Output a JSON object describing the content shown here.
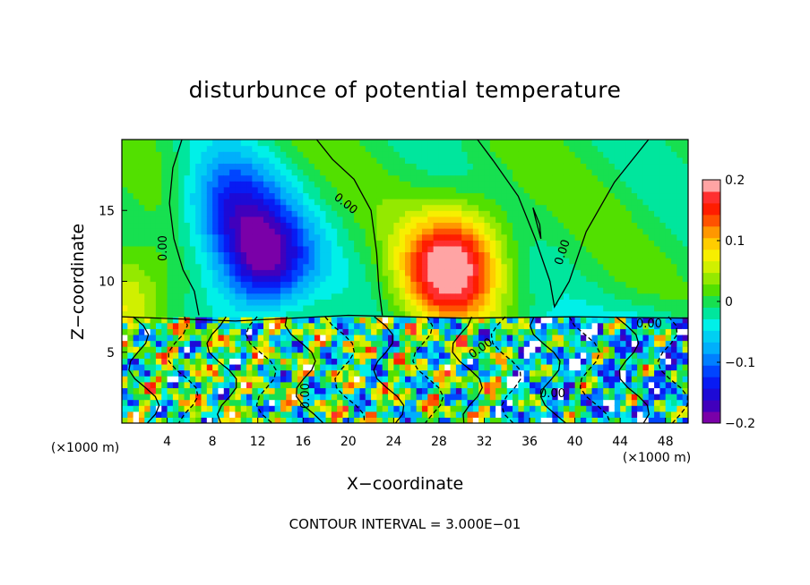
{
  "chart_data": {
    "type": "heatmap",
    "title": "disturbunce of potential temperature",
    "xlabel": "X−coordinate",
    "ylabel": "Z−coordinate",
    "x_unit_left": "(×1000 m)",
    "x_unit_right": "(×1000 m)",
    "xlim": [
      0,
      50
    ],
    "ylim": [
      0,
      20
    ],
    "x_ticks": [
      4,
      8,
      12,
      16,
      20,
      24,
      28,
      32,
      36,
      40,
      44,
      48
    ],
    "y_ticks": [
      5,
      10,
      15
    ],
    "colorbar": {
      "range": [
        -0.2,
        0.2
      ],
      "ticks": [
        {
          "value": 0.2,
          "label": "0.2"
        },
        {
          "value": 0.1,
          "label": "0.1"
        },
        {
          "value": 0.0,
          "label": "0"
        },
        {
          "value": -0.1,
          "label": "−0.1"
        },
        {
          "value": -0.2,
          "label": "−0.2"
        }
      ]
    },
    "contour_labels": [
      "0.00"
    ],
    "contour_interval_text": "CONTOUR INTERVAL = 3.000E−01",
    "boundary_layer_top_z": 7.5,
    "features": [
      {
        "kind": "minimum",
        "x": 12.5,
        "z": 11.5,
        "value": -0.2
      },
      {
        "kind": "minimum",
        "x": 9.5,
        "z": 15.5,
        "value": -0.12
      },
      {
        "kind": "maximum",
        "x": 28.5,
        "z": 10.2,
        "value": 0.15
      },
      {
        "kind": "maximum",
        "x": 30.0,
        "z": 12.5,
        "value": 0.09
      },
      {
        "kind": "maximum",
        "x": 0.5,
        "z": 9.0,
        "value": 0.08
      },
      {
        "kind": "minimum",
        "x": 47.0,
        "z": 3.5,
        "value": -0.15
      },
      {
        "kind": "minimum",
        "x": 38.0,
        "z": 2.5,
        "value": -0.14
      }
    ]
  }
}
